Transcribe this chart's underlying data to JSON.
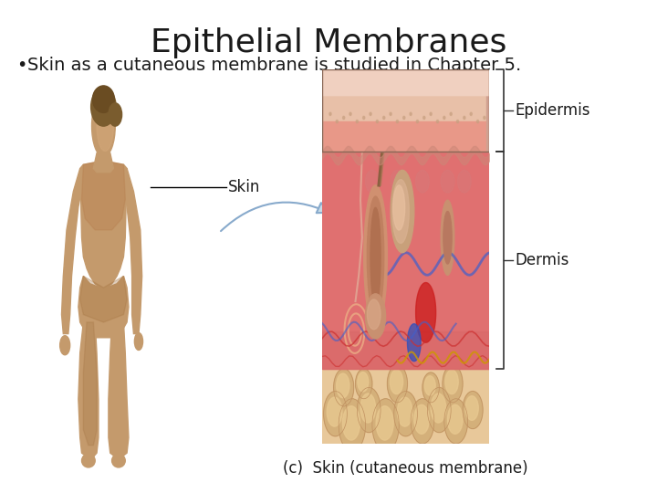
{
  "title": "Epithelial Membranes",
  "bullet": "Skin as a cutaneous membrane is studied in Chapter 5.",
  "caption": "(c)  Skin (cutaneous membrane)",
  "label_skin": "Skin",
  "label_epidermis": "Epidermis",
  "label_dermis": "Dermis",
  "bg_color": "#ffffff",
  "title_fontsize": 26,
  "bullet_fontsize": 14,
  "caption_fontsize": 12,
  "label_fontsize": 12,
  "skin_line_color": "#000000",
  "arrow_color": "#c8dde8",
  "body_color": "#c49a6c",
  "body_shadow": "#a07040",
  "hair_color": "#7a5c2e",
  "epi_color": "#e8a090",
  "epi_top_color": "#f0c0b0",
  "dermis_color": "#e07070",
  "dermis_mid": "#d06060",
  "hypo_color": "#e8c89a",
  "follicle_outer": "#b87060",
  "follicle_inner": "#c8a080",
  "vessel_red": "#cc2020",
  "vessel_blue": "#3050bb",
  "fat_color": "#d4b07a",
  "fat_light": "#e8c890",
  "bracket_color": "#333333",
  "text_color": "#1a1a1a"
}
